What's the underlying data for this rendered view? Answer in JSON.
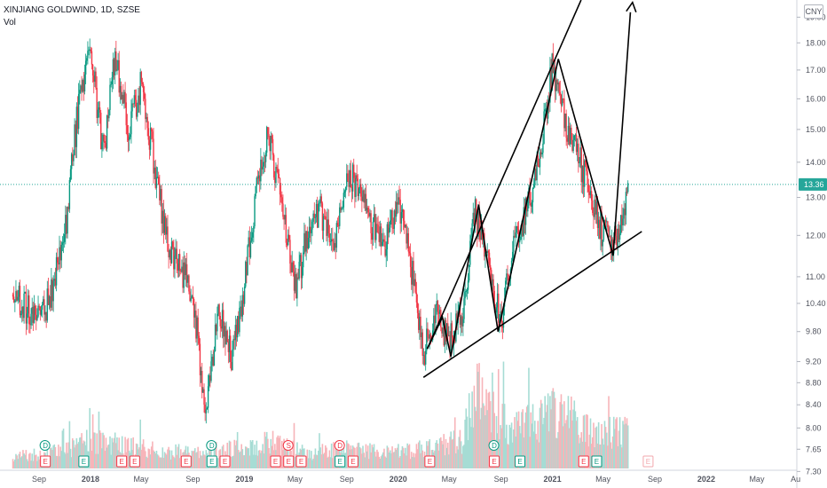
{
  "header": {
    "symbol_line": "XINJIANG GOLDWIND, 1D, SZSE",
    "volume_label": "Vol",
    "currency": "CNY"
  },
  "chart_data": {
    "type": "candlestick",
    "title": "XINJIANG GOLDWIND, 1D, SZSE",
    "currency": "CNY",
    "y_scale": "log",
    "ylim": [
      7.05,
      19.7
    ],
    "y_ticks": [
      7.3,
      7.65,
      8.0,
      8.4,
      8.8,
      9.2,
      9.8,
      10.4,
      11.0,
      12.0,
      13.0,
      14.0,
      15.0,
      16.0,
      17.0,
      18.0,
      19.0
    ],
    "x_ticks": [
      "Sep",
      "2018",
      "May",
      "Sep",
      "2019",
      "May",
      "Sep",
      "2020",
      "May",
      "Sep",
      "2021",
      "May",
      "Sep",
      "2022",
      "May",
      "Au"
    ],
    "last_price": 13.36,
    "price_path": [
      [
        "2017-07",
        10.6
      ],
      [
        "2017-08",
        10.3
      ],
      [
        "2017-09",
        10.1
      ],
      [
        "2017-10",
        10.6
      ],
      [
        "2017-11",
        12.0
      ],
      [
        "2017-12",
        15.5
      ],
      [
        "2018-01",
        17.6
      ],
      [
        "2018-02",
        14.2
      ],
      [
        "2018-03",
        17.5
      ],
      [
        "2018-04",
        14.9
      ],
      [
        "2018-05",
        16.6
      ],
      [
        "2018-06",
        14.0
      ],
      [
        "2018-07",
        11.8
      ],
      [
        "2018-08",
        11.3
      ],
      [
        "2018-09",
        10.6
      ],
      [
        "2018-10",
        8.3
      ],
      [
        "2018-11",
        10.3
      ],
      [
        "2018-12",
        9.3
      ],
      [
        "2019-01",
        10.8
      ],
      [
        "2019-02",
        13.5
      ],
      [
        "2019-03",
        14.9
      ],
      [
        "2019-04",
        12.6
      ],
      [
        "2019-05",
        10.7
      ],
      [
        "2019-06",
        12.1
      ],
      [
        "2019-07",
        12.6
      ],
      [
        "2019-08",
        11.8
      ],
      [
        "2019-09",
        13.8
      ],
      [
        "2019-10",
        13.1
      ],
      [
        "2019-11",
        12.2
      ],
      [
        "2019-12",
        11.9
      ],
      [
        "2020-01",
        12.9
      ],
      [
        "2020-02",
        11.2
      ],
      [
        "2020-03",
        9.4
      ],
      [
        "2020-04",
        10.2
      ],
      [
        "2020-05",
        9.6
      ],
      [
        "2020-06",
        10.2
      ],
      [
        "2020-07",
        12.6
      ],
      [
        "2020-08",
        11.3
      ],
      [
        "2020-09",
        10.0
      ],
      [
        "2020-10",
        11.8
      ],
      [
        "2020-11",
        12.7
      ],
      [
        "2020-12",
        14.1
      ],
      [
        "2021-01",
        17.2
      ],
      [
        "2021-02",
        15.3
      ],
      [
        "2021-03",
        14.2
      ],
      [
        "2021-04",
        13.2
      ],
      [
        "2021-05",
        12.0
      ],
      [
        "2021-06",
        11.9
      ],
      [
        "2021-07",
        13.36
      ]
    ],
    "volume_relative": [
      [
        "2017-07",
        0.15
      ],
      [
        "2017-10",
        0.2
      ],
      [
        "2018-01",
        0.35
      ],
      [
        "2018-04",
        0.3
      ],
      [
        "2018-07",
        0.2
      ],
      [
        "2018-10",
        0.25
      ],
      [
        "2019-01",
        0.25
      ],
      [
        "2019-03",
        0.35
      ],
      [
        "2019-06",
        0.2
      ],
      [
        "2019-09",
        0.25
      ],
      [
        "2019-12",
        0.2
      ],
      [
        "2020-03",
        0.25
      ],
      [
        "2020-06",
        0.35
      ],
      [
        "2020-07",
        1.0
      ],
      [
        "2020-09",
        0.6
      ],
      [
        "2020-10",
        0.5
      ],
      [
        "2020-12",
        0.6
      ],
      [
        "2021-01",
        0.7
      ],
      [
        "2021-03",
        0.6
      ],
      [
        "2021-05",
        0.45
      ],
      [
        "2021-07",
        0.5
      ]
    ],
    "events": [
      {
        "date": "2017-09",
        "label": "D",
        "color": "#089981"
      },
      {
        "date": "2017-09",
        "label": "E",
        "color": "#f23645"
      },
      {
        "date": "2017-12",
        "label": "E",
        "color": "#089981"
      },
      {
        "date": "2018-03",
        "label": "E",
        "color": "#f23645"
      },
      {
        "date": "2018-04",
        "label": "E",
        "color": "#f23645"
      },
      {
        "date": "2018-08",
        "label": "E",
        "color": "#f23645"
      },
      {
        "date": "2018-10",
        "label": "D",
        "color": "#089981"
      },
      {
        "date": "2018-10",
        "label": "E",
        "color": "#089981"
      },
      {
        "date": "2018-11",
        "label": "E",
        "color": "#f23645"
      },
      {
        "date": "2019-03",
        "label": "E",
        "color": "#f23645"
      },
      {
        "date": "2019-04",
        "label": "S",
        "color": "#f23645"
      },
      {
        "date": "2019-04",
        "label": "E",
        "color": "#f23645"
      },
      {
        "date": "2019-05",
        "label": "E",
        "color": "#f23645"
      },
      {
        "date": "2019-08",
        "label": "D",
        "color": "#f23645"
      },
      {
        "date": "2019-08",
        "label": "E",
        "color": "#089981"
      },
      {
        "date": "2019-09",
        "label": "E",
        "color": "#f23645"
      },
      {
        "date": "2020-03",
        "label": "E",
        "color": "#f23645"
      },
      {
        "date": "2020-08",
        "label": "D",
        "color": "#089981"
      },
      {
        "date": "2020-08",
        "label": "E",
        "color": "#f23645"
      },
      {
        "date": "2020-10",
        "label": "E",
        "color": "#089981"
      },
      {
        "date": "2021-03",
        "label": "E",
        "color": "#f23645"
      },
      {
        "date": "2021-04",
        "label": "E",
        "color": "#f23645"
      },
      {
        "date": "2021-04",
        "label": "E",
        "color": "#089981"
      },
      {
        "date": "2021-08",
        "label": "E",
        "color": "#f2a7ad"
      }
    ],
    "drawings": {
      "lower_trendline": [
        [
          "2020-03-01",
          8.9
        ],
        [
          "2021-08-01",
          12.1
        ]
      ],
      "upper_trendline": [
        [
          "2020-03-10",
          9.45
        ],
        [
          "2021-03-10",
          19.7
        ]
      ],
      "zigzag": [
        [
          "2020-03-10",
          9.45
        ],
        [
          "2020-04-15",
          10.1
        ],
        [
          "2020-05-05",
          9.3
        ],
        [
          "2020-07-10",
          12.8
        ],
        [
          "2020-08-25",
          9.8
        ],
        [
          "2021-01-15",
          17.4
        ],
        [
          "2021-05-25",
          11.5
        ],
        [
          "2021-07-05",
          19.2
        ]
      ],
      "arrow_tip": [
        "2021-07-10",
        19.6
      ]
    },
    "colors": {
      "up": "#089981",
      "down": "#f23645",
      "price_line": "#26a69a"
    }
  }
}
